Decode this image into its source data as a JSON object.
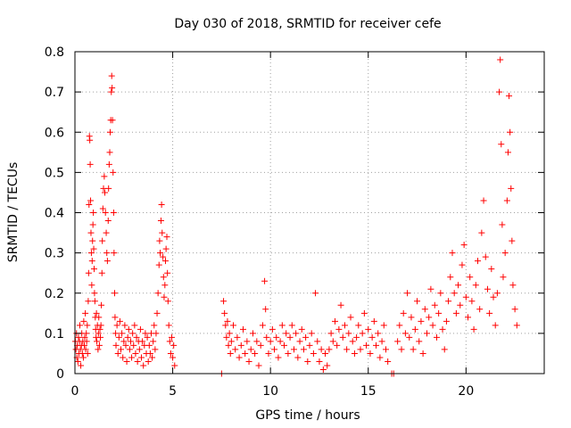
{
  "chart_data": {
    "type": "scatter",
    "title": "Day 030 of 2018, SRMTID for receiver cefe",
    "xlabel": "GPS time / hours",
    "ylabel": "SRMTID / TECUs",
    "xlim": [
      0,
      24
    ],
    "ylim": [
      0,
      0.8
    ],
    "xticks": [
      0,
      5,
      10,
      15,
      20
    ],
    "xtick_labels": [
      "0",
      "5",
      "10",
      "15",
      "20"
    ],
    "yticks": [
      0,
      0.1,
      0.2,
      0.3,
      0.4,
      0.5,
      0.6,
      0.7,
      0.8
    ],
    "ytick_labels": [
      "0",
      "0.1",
      "0.2",
      "0.3",
      "0.4",
      "0.5",
      "0.6",
      "0.7",
      "0.8"
    ],
    "grid": true,
    "marker": "+",
    "color": "#ff0000",
    "series": [
      {
        "name": "SRMTID",
        "points": [
          [
            0.02,
            0.08
          ],
          [
            0.05,
            0.06
          ],
          [
            0.08,
            0.1
          ],
          [
            0.1,
            0.04
          ],
          [
            0.12,
            0.07
          ],
          [
            0.15,
            0.03
          ],
          [
            0.18,
            0.09
          ],
          [
            0.2,
            0.05
          ],
          [
            0.23,
            0.08
          ],
          [
            0.25,
            0.12
          ],
          [
            0.28,
            0.06
          ],
          [
            0.3,
            0.02
          ],
          [
            0.33,
            0.07
          ],
          [
            0.35,
            0.1
          ],
          [
            0.38,
            0.05
          ],
          [
            0.4,
            0.08
          ],
          [
            0.43,
            0.04
          ],
          [
            0.45,
            0.13
          ],
          [
            0.48,
            0.07
          ],
          [
            0.5,
            0.09
          ],
          [
            0.53,
            0.15
          ],
          [
            0.55,
            0.06
          ],
          [
            0.58,
            0.1
          ],
          [
            0.6,
            0.08
          ],
          [
            0.63,
            0.12
          ],
          [
            0.65,
            0.05
          ],
          [
            0.68,
            0.18
          ],
          [
            0.7,
            0.25
          ],
          [
            0.72,
            0.42
          ],
          [
            0.74,
            0.59
          ],
          [
            0.76,
            0.58
          ],
          [
            0.78,
            0.52
          ],
          [
            0.8,
            0.43
          ],
          [
            0.82,
            0.35
          ],
          [
            0.84,
            0.3
          ],
          [
            0.86,
            0.22
          ],
          [
            0.88,
            0.28
          ],
          [
            0.9,
            0.33
          ],
          [
            0.92,
            0.37
          ],
          [
            0.94,
            0.4
          ],
          [
            0.96,
            0.31
          ],
          [
            0.98,
            0.26
          ],
          [
            1.0,
            0.2
          ],
          [
            1.02,
            0.18
          ],
          [
            1.04,
            0.14
          ],
          [
            1.06,
            0.11
          ],
          [
            1.08,
            0.09
          ],
          [
            1.1,
            0.15
          ],
          [
            1.12,
            0.08
          ],
          [
            1.15,
            0.12
          ],
          [
            1.18,
            0.06
          ],
          [
            1.2,
            0.1
          ],
          [
            1.22,
            0.14
          ],
          [
            1.25,
            0.07
          ],
          [
            1.28,
            0.11
          ],
          [
            1.3,
            0.09
          ],
          [
            1.33,
            0.12
          ],
          [
            1.35,
            0.17
          ],
          [
            1.38,
            0.25
          ],
          [
            1.4,
            0.33
          ],
          [
            1.43,
            0.41
          ],
          [
            1.46,
            0.46
          ],
          [
            1.5,
            0.49
          ],
          [
            1.53,
            0.45
          ],
          [
            1.56,
            0.4
          ],
          [
            1.6,
            0.35
          ],
          [
            1.63,
            0.3
          ],
          [
            1.66,
            0.28
          ],
          [
            1.7,
            0.38
          ],
          [
            1.72,
            0.46
          ],
          [
            1.75,
            0.52
          ],
          [
            1.78,
            0.55
          ],
          [
            1.8,
            0.6
          ],
          [
            1.83,
            0.63
          ],
          [
            1.86,
            0.7
          ],
          [
            1.88,
            0.74
          ],
          [
            1.9,
            0.71
          ],
          [
            1.92,
            0.63
          ],
          [
            1.95,
            0.5
          ],
          [
            1.98,
            0.4
          ],
          [
            2.0,
            0.3
          ],
          [
            2.03,
            0.2
          ],
          [
            2.05,
            0.14
          ],
          [
            2.08,
            0.1
          ],
          [
            2.1,
            0.07
          ],
          [
            2.15,
            0.12
          ],
          [
            2.2,
            0.05
          ],
          [
            2.25,
            0.09
          ],
          [
            2.3,
            0.13
          ],
          [
            2.35,
            0.06
          ],
          [
            2.4,
            0.1
          ],
          [
            2.45,
            0.04
          ],
          [
            2.5,
            0.08
          ],
          [
            2.55,
            0.12
          ],
          [
            2.6,
            0.07
          ],
          [
            2.65,
            0.03
          ],
          [
            2.7,
            0.09
          ],
          [
            2.75,
            0.11
          ],
          [
            2.8,
            0.06
          ],
          [
            2.85,
            0.08
          ],
          [
            2.9,
            0.04
          ],
          [
            2.95,
            0.1
          ],
          [
            3.0,
            0.07
          ],
          [
            3.05,
            0.12
          ],
          [
            3.1,
            0.05
          ],
          [
            3.15,
            0.09
          ],
          [
            3.2,
            0.03
          ],
          [
            3.25,
            0.08
          ],
          [
            3.3,
            0.06
          ],
          [
            3.35,
            0.11
          ],
          [
            3.4,
            0.04
          ],
          [
            3.45,
            0.08
          ],
          [
            3.5,
            0.02
          ],
          [
            3.55,
            0.07
          ],
          [
            3.6,
            0.1
          ],
          [
            3.65,
            0.05
          ],
          [
            3.7,
            0.09
          ],
          [
            3.75,
            0.03
          ],
          [
            3.8,
            0.07
          ],
          [
            3.85,
            0.05
          ],
          [
            3.9,
            0.1
          ],
          [
            3.95,
            0.04
          ],
          [
            4.0,
            0.08
          ],
          [
            4.05,
            0.12
          ],
          [
            4.1,
            0.06
          ],
          [
            4.15,
            0.1
          ],
          [
            4.2,
            0.15
          ],
          [
            4.25,
            0.2
          ],
          [
            4.3,
            0.27
          ],
          [
            4.33,
            0.33
          ],
          [
            4.36,
            0.3
          ],
          [
            4.4,
            0.38
          ],
          [
            4.43,
            0.42
          ],
          [
            4.46,
            0.35
          ],
          [
            4.5,
            0.29
          ],
          [
            4.53,
            0.24
          ],
          [
            4.56,
            0.19
          ],
          [
            4.6,
            0.22
          ],
          [
            4.63,
            0.28
          ],
          [
            4.66,
            0.31
          ],
          [
            4.7,
            0.34
          ],
          [
            4.73,
            0.25
          ],
          [
            4.76,
            0.18
          ],
          [
            4.8,
            0.12
          ],
          [
            4.85,
            0.08
          ],
          [
            4.9,
            0.05
          ],
          [
            4.95,
            0.09
          ],
          [
            5.0,
            0.04
          ],
          [
            5.05,
            0.07
          ],
          [
            5.1,
            0.02
          ],
          [
            7.5,
            0.0
          ],
          [
            7.6,
            0.18
          ],
          [
            7.65,
            0.15
          ],
          [
            7.7,
            0.12
          ],
          [
            7.75,
            0.09
          ],
          [
            7.8,
            0.13
          ],
          [
            7.85,
            0.07
          ],
          [
            7.9,
            0.1
          ],
          [
            7.95,
            0.05
          ],
          [
            8.0,
            0.08
          ],
          [
            8.1,
            0.12
          ],
          [
            8.2,
            0.06
          ],
          [
            8.3,
            0.09
          ],
          [
            8.4,
            0.04
          ],
          [
            8.5,
            0.07
          ],
          [
            8.6,
            0.11
          ],
          [
            8.7,
            0.05
          ],
          [
            8.8,
            0.08
          ],
          [
            8.9,
            0.03
          ],
          [
            9.0,
            0.06
          ],
          [
            9.1,
            0.1
          ],
          [
            9.2,
            0.05
          ],
          [
            9.3,
            0.08
          ],
          [
            9.4,
            0.02
          ],
          [
            9.5,
            0.07
          ],
          [
            9.6,
            0.12
          ],
          [
            9.7,
            0.23
          ],
          [
            9.75,
            0.16
          ],
          [
            9.8,
            0.09
          ],
          [
            9.9,
            0.05
          ],
          [
            10.0,
            0.08
          ],
          [
            10.1,
            0.11
          ],
          [
            10.2,
            0.06
          ],
          [
            10.3,
            0.09
          ],
          [
            10.4,
            0.04
          ],
          [
            10.5,
            0.08
          ],
          [
            10.6,
            0.12
          ],
          [
            10.7,
            0.07
          ],
          [
            10.8,
            0.1
          ],
          [
            10.9,
            0.05
          ],
          [
            11.0,
            0.09
          ],
          [
            11.1,
            0.12
          ],
          [
            11.2,
            0.06
          ],
          [
            11.3,
            0.1
          ],
          [
            11.4,
            0.04
          ],
          [
            11.5,
            0.08
          ],
          [
            11.6,
            0.11
          ],
          [
            11.7,
            0.06
          ],
          [
            11.8,
            0.09
          ],
          [
            11.9,
            0.03
          ],
          [
            12.0,
            0.07
          ],
          [
            12.1,
            0.1
          ],
          [
            12.2,
            0.05
          ],
          [
            12.3,
            0.2
          ],
          [
            12.4,
            0.08
          ],
          [
            12.5,
            0.03
          ],
          [
            12.6,
            0.06
          ],
          [
            12.7,
            0.01
          ],
          [
            12.8,
            0.05
          ],
          [
            12.9,
            0.02
          ],
          [
            13.0,
            0.06
          ],
          [
            13.1,
            0.1
          ],
          [
            13.2,
            0.08
          ],
          [
            13.3,
            0.13
          ],
          [
            13.4,
            0.07
          ],
          [
            13.5,
            0.11
          ],
          [
            13.6,
            0.17
          ],
          [
            13.7,
            0.09
          ],
          [
            13.8,
            0.12
          ],
          [
            13.9,
            0.06
          ],
          [
            14.0,
            0.1
          ],
          [
            14.1,
            0.14
          ],
          [
            14.2,
            0.08
          ],
          [
            14.3,
            0.05
          ],
          [
            14.4,
            0.09
          ],
          [
            14.5,
            0.12
          ],
          [
            14.6,
            0.06
          ],
          [
            14.7,
            0.1
          ],
          [
            14.8,
            0.15
          ],
          [
            14.9,
            0.07
          ],
          [
            15.0,
            0.11
          ],
          [
            15.1,
            0.05
          ],
          [
            15.2,
            0.09
          ],
          [
            15.3,
            0.13
          ],
          [
            15.4,
            0.07
          ],
          [
            15.5,
            0.1
          ],
          [
            15.6,
            0.04
          ],
          [
            15.7,
            0.08
          ],
          [
            15.8,
            0.12
          ],
          [
            15.9,
            0.06
          ],
          [
            16.0,
            0.03
          ],
          [
            16.2,
            0.0
          ],
          [
            16.3,
            0.0
          ],
          [
            16.5,
            0.08
          ],
          [
            16.6,
            0.12
          ],
          [
            16.7,
            0.06
          ],
          [
            16.8,
            0.15
          ],
          [
            16.9,
            0.1
          ],
          [
            17.0,
            0.2
          ],
          [
            17.1,
            0.09
          ],
          [
            17.2,
            0.14
          ],
          [
            17.3,
            0.06
          ],
          [
            17.4,
            0.11
          ],
          [
            17.5,
            0.18
          ],
          [
            17.6,
            0.08
          ],
          [
            17.7,
            0.13
          ],
          [
            17.8,
            0.05
          ],
          [
            17.9,
            0.16
          ],
          [
            18.0,
            0.1
          ],
          [
            18.1,
            0.14
          ],
          [
            18.2,
            0.21
          ],
          [
            18.3,
            0.12
          ],
          [
            18.4,
            0.17
          ],
          [
            18.5,
            0.09
          ],
          [
            18.6,
            0.15
          ],
          [
            18.7,
            0.2
          ],
          [
            18.8,
            0.11
          ],
          [
            18.9,
            0.06
          ],
          [
            19.0,
            0.13
          ],
          [
            19.1,
            0.18
          ],
          [
            19.2,
            0.24
          ],
          [
            19.3,
            0.3
          ],
          [
            19.4,
            0.2
          ],
          [
            19.5,
            0.15
          ],
          [
            19.6,
            0.22
          ],
          [
            19.7,
            0.17
          ],
          [
            19.8,
            0.27
          ],
          [
            19.9,
            0.32
          ],
          [
            20.0,
            0.19
          ],
          [
            20.1,
            0.14
          ],
          [
            20.2,
            0.24
          ],
          [
            20.3,
            0.18
          ],
          [
            20.4,
            0.11
          ],
          [
            20.5,
            0.22
          ],
          [
            20.6,
            0.28
          ],
          [
            20.7,
            0.16
          ],
          [
            20.8,
            0.35
          ],
          [
            20.9,
            0.43
          ],
          [
            21.0,
            0.29
          ],
          [
            21.1,
            0.21
          ],
          [
            21.2,
            0.15
          ],
          [
            21.3,
            0.26
          ],
          [
            21.4,
            0.19
          ],
          [
            21.5,
            0.12
          ],
          [
            21.6,
            0.2
          ],
          [
            21.7,
            0.7
          ],
          [
            21.75,
            0.78
          ],
          [
            21.8,
            0.57
          ],
          [
            21.85,
            0.37
          ],
          [
            21.9,
            0.24
          ],
          [
            22.0,
            0.3
          ],
          [
            22.1,
            0.43
          ],
          [
            22.15,
            0.55
          ],
          [
            22.2,
            0.69
          ],
          [
            22.25,
            0.6
          ],
          [
            22.3,
            0.46
          ],
          [
            22.35,
            0.33
          ],
          [
            22.4,
            0.22
          ],
          [
            22.5,
            0.16
          ],
          [
            22.6,
            0.12
          ]
        ]
      }
    ]
  }
}
